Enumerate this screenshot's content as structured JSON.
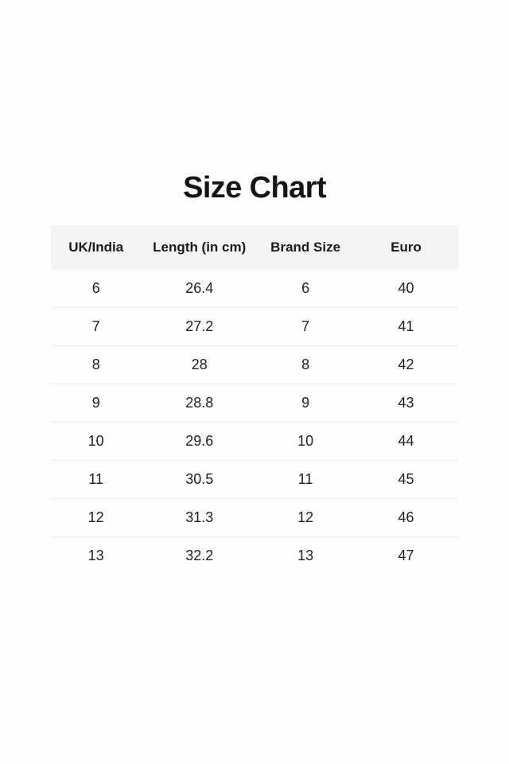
{
  "page": {
    "title": "Size Chart",
    "background": "#fefefe"
  },
  "chart_data": {
    "type": "table",
    "title": "Size Chart",
    "columns": [
      "UK/India",
      "Length (in cm)",
      "Brand Size",
      "Euro"
    ],
    "rows": [
      [
        "6",
        "26.4",
        "6",
        "40"
      ],
      [
        "7",
        "27.2",
        "7",
        "41"
      ],
      [
        "8",
        "28",
        "8",
        "42"
      ],
      [
        "9",
        "28.8",
        "9",
        "43"
      ],
      [
        "10",
        "29.6",
        "10",
        "44"
      ],
      [
        "11",
        "30.5",
        "11",
        "45"
      ],
      [
        "12",
        "31.3",
        "12",
        "46"
      ],
      [
        "13",
        "32.2",
        "13",
        "47"
      ]
    ],
    "layout": {
      "header_background": "#f4f4f4",
      "divider_color": "#f0f0f0",
      "text_color": "#1c1c1c",
      "alignment": "center",
      "legend": "none",
      "grid": "horizontal-dividers-only"
    }
  }
}
